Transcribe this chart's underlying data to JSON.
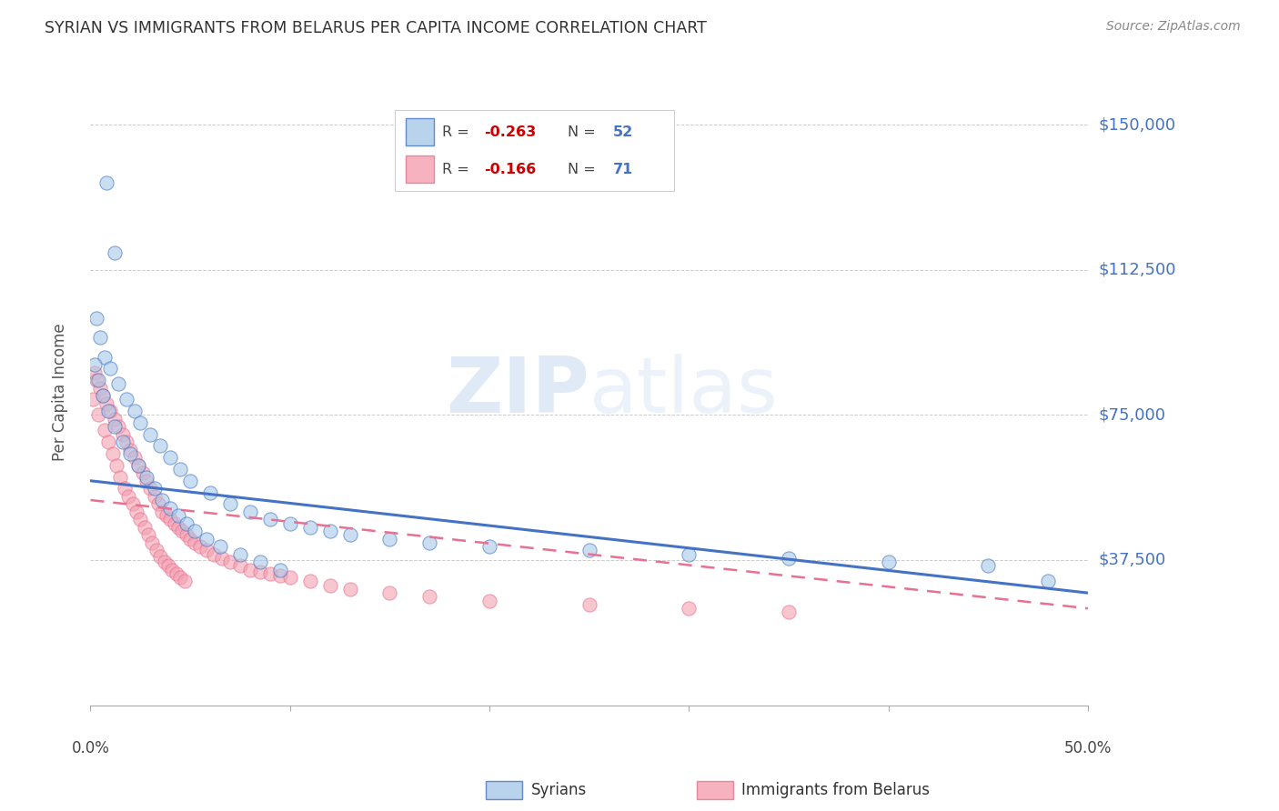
{
  "title": "SYRIAN VS IMMIGRANTS FROM BELARUS PER CAPITA INCOME CORRELATION CHART",
  "source": "Source: ZipAtlas.com",
  "ylabel": "Per Capita Income",
  "ylim": [
    0,
    162000
  ],
  "xlim": [
    0.0,
    0.5
  ],
  "watermark_zip": "ZIP",
  "watermark_atlas": "atlas",
  "blue_color": "#a8c8e8",
  "pink_color": "#f4a0b0",
  "line_blue": "#4472C4",
  "line_pink": "#E87090",
  "syrians_x": [
    0.008,
    0.012,
    0.003,
    0.005,
    0.007,
    0.01,
    0.014,
    0.018,
    0.022,
    0.025,
    0.03,
    0.035,
    0.04,
    0.045,
    0.05,
    0.06,
    0.07,
    0.08,
    0.09,
    0.1,
    0.11,
    0.12,
    0.13,
    0.15,
    0.17,
    0.2,
    0.25,
    0.3,
    0.35,
    0.4,
    0.45,
    0.48,
    0.002,
    0.004,
    0.006,
    0.009,
    0.012,
    0.016,
    0.02,
    0.024,
    0.028,
    0.032,
    0.036,
    0.04,
    0.044,
    0.048,
    0.052,
    0.058,
    0.065,
    0.075,
    0.085,
    0.095
  ],
  "syrians_y": [
    135000,
    117000,
    100000,
    95000,
    90000,
    87000,
    83000,
    79000,
    76000,
    73000,
    70000,
    67000,
    64000,
    61000,
    58000,
    55000,
    52000,
    50000,
    48000,
    47000,
    46000,
    45000,
    44000,
    43000,
    42000,
    41000,
    40000,
    39000,
    38000,
    37000,
    36000,
    32000,
    88000,
    84000,
    80000,
    76000,
    72000,
    68000,
    65000,
    62000,
    59000,
    56000,
    53000,
    51000,
    49000,
    47000,
    45000,
    43000,
    41000,
    39000,
    37000,
    35000
  ],
  "belarus_x": [
    0.002,
    0.003,
    0.005,
    0.006,
    0.008,
    0.01,
    0.012,
    0.014,
    0.016,
    0.018,
    0.02,
    0.022,
    0.024,
    0.026,
    0.028,
    0.03,
    0.032,
    0.034,
    0.036,
    0.038,
    0.04,
    0.042,
    0.044,
    0.046,
    0.048,
    0.05,
    0.052,
    0.055,
    0.058,
    0.062,
    0.066,
    0.07,
    0.075,
    0.08,
    0.085,
    0.09,
    0.095,
    0.1,
    0.11,
    0.12,
    0.13,
    0.15,
    0.17,
    0.2,
    0.25,
    0.3,
    0.35,
    0.001,
    0.004,
    0.007,
    0.009,
    0.011,
    0.013,
    0.015,
    0.017,
    0.019,
    0.021,
    0.023,
    0.025,
    0.027,
    0.029,
    0.031,
    0.033,
    0.035,
    0.037,
    0.039,
    0.041,
    0.043,
    0.045,
    0.047
  ],
  "belarus_y": [
    86000,
    84000,
    82000,
    80000,
    78000,
    76000,
    74000,
    72000,
    70000,
    68000,
    66000,
    64000,
    62000,
    60000,
    58000,
    56000,
    54000,
    52000,
    50000,
    49000,
    48000,
    47000,
    46000,
    45000,
    44000,
    43000,
    42000,
    41000,
    40000,
    39000,
    38000,
    37000,
    36000,
    35000,
    34500,
    34000,
    33500,
    33000,
    32000,
    31000,
    30000,
    29000,
    28000,
    27000,
    26000,
    25000,
    24000,
    79000,
    75000,
    71000,
    68000,
    65000,
    62000,
    59000,
    56000,
    54000,
    52000,
    50000,
    48000,
    46000,
    44000,
    42000,
    40000,
    38500,
    37000,
    36000,
    35000,
    34000,
    33000,
    32000
  ],
  "syrians_line_x": [
    0.0,
    0.5
  ],
  "syrians_line_y": [
    58000,
    29000
  ],
  "belarus_line_x": [
    0.0,
    0.5
  ],
  "belarus_line_y": [
    53000,
    25000
  ],
  "ytick_vals": [
    0,
    37500,
    75000,
    112500,
    150000
  ],
  "ytick_labels_right": [
    "$37,500",
    "$75,000",
    "$112,500",
    "$150,000"
  ],
  "xtick_positions": [
    0.0,
    0.1,
    0.2,
    0.3,
    0.4,
    0.5
  ]
}
